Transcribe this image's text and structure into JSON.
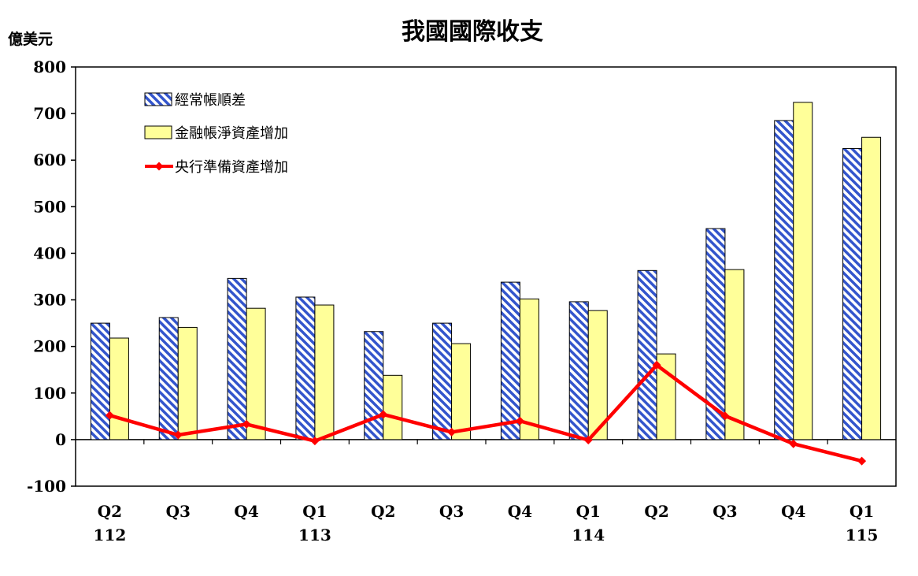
{
  "chart_data": {
    "type": "bar",
    "title": "我國國際收支",
    "unit_label": "億美元",
    "ylim": [
      -100,
      800
    ],
    "yticks": [
      -100,
      0,
      100,
      200,
      300,
      400,
      500,
      600,
      700,
      800
    ],
    "categories": [
      "Q2",
      "Q3",
      "Q4",
      "Q1",
      "Q2",
      "Q3",
      "Q4",
      "Q1",
      "Q2",
      "Q3",
      "Q4",
      "Q1"
    ],
    "year_labels": [
      "112",
      "",
      "",
      "113",
      "",
      "",
      "",
      "114",
      "",
      "",
      "",
      "115"
    ],
    "series": [
      {
        "name": "經常帳順差",
        "type": "bar",
        "pattern": "diagonal-hatch",
        "color": "#3355cc",
        "values": [
          250,
          262,
          346,
          306,
          232,
          250,
          338,
          296,
          363,
          453,
          685,
          625
        ]
      },
      {
        "name": "金融帳淨資產增加",
        "type": "bar",
        "color": "#ffff99",
        "values": [
          218,
          241,
          282,
          289,
          138,
          206,
          302,
          277,
          184,
          365,
          724,
          649
        ]
      },
      {
        "name": "央行準備資產增加",
        "type": "line",
        "marker": "diamond",
        "color": "#ff0000",
        "values": [
          52,
          10,
          33,
          -3,
          54,
          16,
          40,
          -1,
          160,
          51,
          -9,
          -46
        ]
      }
    ],
    "legend_position": "top-left (inside plot)",
    "grid": false
  }
}
